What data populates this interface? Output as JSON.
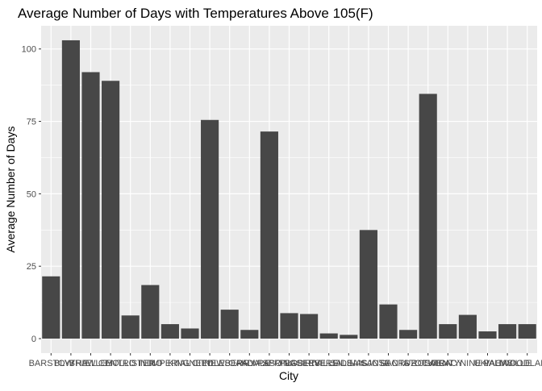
{
  "chart_data": {
    "type": "bar",
    "title": "Average Number of Days with Temperatures Above 105(F)",
    "xlabel": "City",
    "ylabel": "Average Number of Days",
    "ylim": [
      -5,
      108
    ],
    "yticks": [
      0,
      25,
      50,
      75,
      100
    ],
    "grid": true,
    "legend": "none",
    "colors": {
      "bar": "#474747",
      "panel": "#ebebeb",
      "grid": "#ffffff"
    },
    "categories": [
      "BARSTOW",
      "BLYTHE",
      "BRAWLEY",
      "EL CENTRO",
      "HOLLISTER",
      "INDIO",
      "IMPERIAL",
      "KING CITY",
      "NEEDLES",
      "NEWBERRY",
      "OAKDALE",
      "PALM SPRINGS",
      "PASO ROBLES",
      "PLACERVILLE",
      "RIVERSIDE",
      "SALINAS",
      "SAN JOSE",
      "SANTA CRUZ",
      "SANTA ROSA",
      "STOCKTON",
      "TRACY",
      "TWENTYNINE PALMS",
      "UKIAH",
      "VACAVILLE",
      "WOODLAND"
    ],
    "values": [
      21.5,
      103.0,
      92.0,
      89.0,
      8.0,
      18.5,
      5.0,
      3.5,
      75.5,
      10.0,
      3.0,
      71.5,
      8.8,
      8.5,
      1.8,
      1.3,
      37.5,
      11.8,
      3.0,
      84.5,
      5.0,
      8.2,
      2.5,
      5.0,
      5.0
    ]
  }
}
